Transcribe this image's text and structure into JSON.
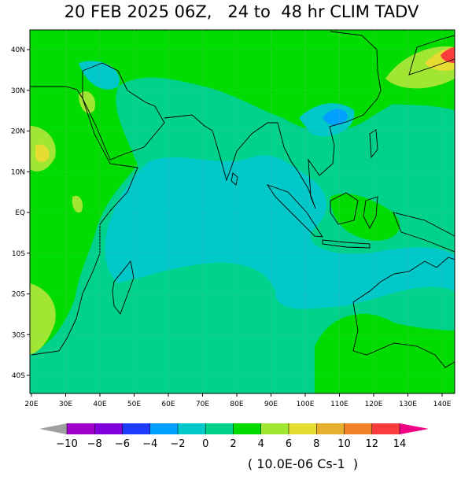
{
  "title": "20 FEB 2025 06Z,   24 to  48 hr CLIM TADV",
  "map": {
    "lat_labels": [
      "40N",
      "30N",
      "20N",
      "10N",
      "EQ",
      "10S",
      "20S",
      "30S",
      "40S"
    ],
    "lon_labels": [
      "20E",
      "30E",
      "40E",
      "50E",
      "60E",
      "70E",
      "80E",
      "90E",
      "100E",
      "110E",
      "120E",
      "130E",
      "140E"
    ]
  },
  "colorbar": {
    "labels": [
      "−10",
      "−8",
      "−6",
      "−4",
      "−2",
      "0",
      "2",
      "4",
      "6",
      "8",
      "10",
      "12",
      "14"
    ],
    "colors": [
      "#a0a0a0",
      "#a000c8",
      "#8200dc",
      "#1e3cff",
      "#00a0ff",
      "#00c8c8",
      "#00d28c",
      "#00dc00",
      "#a0e632",
      "#e6dc32",
      "#e6af2d",
      "#f08228",
      "#fa3c3c",
      "#f00082"
    ],
    "units": "( 10.0E-06 Cs-1  )"
  }
}
